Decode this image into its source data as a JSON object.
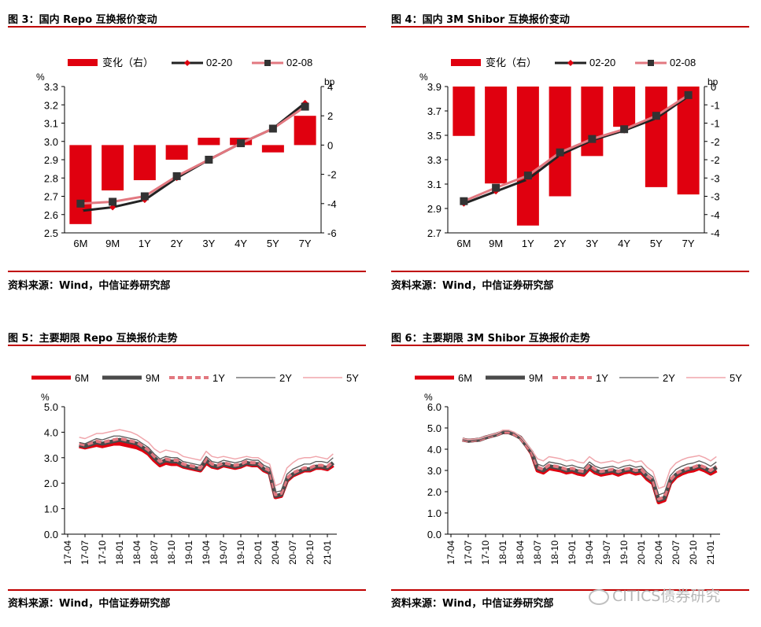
{
  "panels": [
    {
      "title": "图 3：国内 Repo 互换报价变动",
      "source": "资料来源：Wind，中信证券研究部"
    },
    {
      "title": "图 4：国内 3M Shibor 互换报价变动",
      "source": "资料来源：Wind，中信证券研究部"
    },
    {
      "title": "图 5：主要期限 Repo 互换报价走势",
      "source": "资料来源：Wind，中信证券研究部"
    },
    {
      "title": "图 6：主要期限 3M Shibor 互换报价走势",
      "source": "资料来源：Wind，中信证券研究部"
    }
  ],
  "watermark": "CITICS债券研究",
  "colors": {
    "accent": "#c00000",
    "bar": "#e0000f",
    "dark": "#222222",
    "pink": "#e27880",
    "grey": "#5a5a5a",
    "light_pink": "#f0a6ac"
  },
  "chart_data": [
    {
      "type": "bar",
      "categories": [
        "6M",
        "9M",
        "1Y",
        "2Y",
        "3Y",
        "4Y",
        "5Y",
        "7Y"
      ],
      "left_unit": "%",
      "right_unit": "bp",
      "ylim": [
        2.5,
        3.3
      ],
      "yticks": [
        "2.5",
        "2.6",
        "2.7",
        "2.8",
        "2.9",
        "3.0",
        "3.1",
        "3.2",
        "3.3"
      ],
      "y2lim": [
        -6,
        4
      ],
      "y2ticks": [
        "-6",
        "-4",
        "-2",
        "0",
        "2",
        "4"
      ],
      "series": [
        {
          "name": "变化（右）",
          "kind": "bar",
          "axis": "right",
          "values": [
            -5.4,
            -3.1,
            -2.4,
            -1.0,
            0.5,
            0.5,
            -0.5,
            2.0
          ]
        },
        {
          "name": "02-20",
          "kind": "line",
          "marker": "diamond",
          "values": [
            2.62,
            2.64,
            2.68,
            2.8,
            2.9,
            2.99,
            3.07,
            3.21
          ]
        },
        {
          "name": "02-08",
          "kind": "line",
          "marker": "square",
          "values": [
            2.66,
            2.67,
            2.7,
            2.81,
            2.9,
            2.99,
            3.07,
            3.19
          ]
        }
      ],
      "legend": "top"
    },
    {
      "type": "bar",
      "categories": [
        "6M",
        "9M",
        "1Y",
        "2Y",
        "3Y",
        "4Y",
        "5Y",
        "7Y"
      ],
      "left_unit": "%",
      "right_unit": "bp",
      "ylim": [
        2.7,
        3.9
      ],
      "yticks": [
        "2.7",
        "2.9",
        "3.1",
        "3.3",
        "3.5",
        "3.7",
        "3.9"
      ],
      "y2lim": [
        -4,
        0
      ],
      "y2ticks": [
        "-4",
        "-4",
        "-3",
        "-3",
        "-2",
        "-2",
        "-1",
        "-1",
        "0"
      ],
      "series": [
        {
          "name": "变化（右）",
          "kind": "bar",
          "axis": "right",
          "values": [
            -1.35,
            -2.65,
            -3.8,
            -3.0,
            -1.9,
            -1.1,
            -2.75,
            -2.95
          ]
        },
        {
          "name": "02-20",
          "kind": "line",
          "marker": "diamond",
          "values": [
            2.94,
            3.04,
            3.14,
            3.34,
            3.46,
            3.54,
            3.64,
            3.82
          ]
        },
        {
          "name": "02-08",
          "kind": "line",
          "marker": "square",
          "values": [
            2.96,
            3.07,
            3.17,
            3.36,
            3.47,
            3.55,
            3.66,
            3.83
          ]
        }
      ],
      "legend": "top"
    },
    {
      "type": "line",
      "unit": "%",
      "ylim": [
        0.0,
        5.0
      ],
      "yticks": [
        "0.0",
        "1.0",
        "2.0",
        "3.0",
        "4.0",
        "5.0"
      ],
      "xticks": [
        "17-04",
        "17-07",
        "17-10",
        "18-01",
        "18-04",
        "18-07",
        "18-10",
        "19-01",
        "19-04",
        "19-07",
        "19-10",
        "20-01",
        "20-04",
        "20-07",
        "20-10",
        "21-01"
      ],
      "x": [
        "17-06",
        "17-07",
        "17-09",
        "17-10",
        "17-12",
        "18-01",
        "18-02",
        "18-03",
        "18-04",
        "18-05",
        "18-06",
        "18-07",
        "18-08",
        "18-09",
        "18-10",
        "18-11",
        "18-12",
        "19-01",
        "19-02",
        "19-03",
        "19-04",
        "19-05",
        "19-06",
        "19-07",
        "19-08",
        "19-09",
        "19-10",
        "19-11",
        "19-12",
        "20-01",
        "20-02",
        "20-03",
        "20-04",
        "20-05",
        "20-06",
        "20-07",
        "20-08",
        "20-09",
        "20-10",
        "20-11",
        "20-12",
        "21-01",
        "21-02"
      ],
      "series": [
        {
          "name": "6M",
          "style": "thick-red",
          "values": [
            3.45,
            3.4,
            3.5,
            3.45,
            3.55,
            3.55,
            3.5,
            3.45,
            3.4,
            3.3,
            3.15,
            2.9,
            2.7,
            2.8,
            2.75,
            2.75,
            2.65,
            2.6,
            2.55,
            2.5,
            2.8,
            2.65,
            2.6,
            2.7,
            2.65,
            2.6,
            2.65,
            2.75,
            2.7,
            2.7,
            2.5,
            2.4,
            1.45,
            1.5,
            2.1,
            2.3,
            2.4,
            2.5,
            2.5,
            2.6,
            2.6,
            2.55,
            2.7
          ]
        },
        {
          "name": "9M",
          "style": "thick-dark",
          "values": [
            3.5,
            3.45,
            3.6,
            3.55,
            3.65,
            3.7,
            3.65,
            3.6,
            3.55,
            3.4,
            3.25,
            3.0,
            2.8,
            2.9,
            2.85,
            2.85,
            2.7,
            2.65,
            2.6,
            2.55,
            2.9,
            2.7,
            2.65,
            2.75,
            2.7,
            2.65,
            2.7,
            2.8,
            2.75,
            2.75,
            2.55,
            2.45,
            1.5,
            1.55,
            2.15,
            2.35,
            2.45,
            2.55,
            2.55,
            2.65,
            2.65,
            2.6,
            2.8
          ]
        },
        {
          "name": "1Y",
          "style": "dashed-pink",
          "values": [
            3.55,
            3.5,
            3.65,
            3.6,
            3.7,
            3.75,
            3.7,
            3.65,
            3.6,
            3.45,
            3.3,
            3.05,
            2.85,
            2.95,
            2.9,
            2.9,
            2.75,
            2.7,
            2.65,
            2.6,
            2.95,
            2.75,
            2.7,
            2.8,
            2.75,
            2.7,
            2.75,
            2.85,
            2.8,
            2.8,
            2.6,
            2.5,
            1.55,
            1.6,
            2.2,
            2.4,
            2.5,
            2.6,
            2.6,
            2.7,
            2.7,
            2.65,
            2.85
          ]
        },
        {
          "name": "2Y",
          "style": "thin-grey",
          "values": [
            3.6,
            3.55,
            3.75,
            3.7,
            3.85,
            3.85,
            3.8,
            3.75,
            3.7,
            3.55,
            3.4,
            3.15,
            2.95,
            3.05,
            3.0,
            3.0,
            2.85,
            2.8,
            2.75,
            2.7,
            3.05,
            2.85,
            2.8,
            2.9,
            2.85,
            2.8,
            2.85,
            2.95,
            2.9,
            2.9,
            2.7,
            2.6,
            1.65,
            1.7,
            2.35,
            2.55,
            2.65,
            2.75,
            2.75,
            2.85,
            2.85,
            2.8,
            3.0
          ]
        },
        {
          "name": "5Y",
          "style": "thin-lightpink",
          "values": [
            3.8,
            3.75,
            3.95,
            3.95,
            4.05,
            4.1,
            4.05,
            4.0,
            3.9,
            3.75,
            3.6,
            3.35,
            3.2,
            3.3,
            3.25,
            3.2,
            3.05,
            3.0,
            2.95,
            2.9,
            3.25,
            3.05,
            3.0,
            3.05,
            3.0,
            2.95,
            3.0,
            3.05,
            3.0,
            3.0,
            2.85,
            2.75,
            1.9,
            2.0,
            2.6,
            2.8,
            2.95,
            3.0,
            3.0,
            3.05,
            3.0,
            2.95,
            3.15
          ]
        }
      ],
      "legend": "top"
    },
    {
      "type": "line",
      "unit": "%",
      "ylim": [
        0.0,
        6.0
      ],
      "yticks": [
        "0.0",
        "1.0",
        "2.0",
        "3.0",
        "4.0",
        "5.0",
        "6.0"
      ],
      "xticks": [
        "17-04",
        "17-07",
        "17-10",
        "18-01",
        "18-04",
        "18-07",
        "18-10",
        "19-01",
        "19-04",
        "19-07",
        "19-10",
        "20-01",
        "20-04",
        "20-07",
        "20-10",
        "21-01"
      ],
      "x": [
        "17-06",
        "17-07",
        "17-09",
        "17-10",
        "17-12",
        "18-01",
        "18-02",
        "18-03",
        "18-04",
        "18-05",
        "18-06",
        "18-07",
        "18-08",
        "18-09",
        "18-10",
        "18-11",
        "18-12",
        "19-01",
        "19-02",
        "19-03",
        "19-04",
        "19-05",
        "19-06",
        "19-07",
        "19-08",
        "19-09",
        "19-10",
        "19-11",
        "19-12",
        "20-01",
        "20-02",
        "20-03",
        "20-04",
        "20-05",
        "20-06",
        "20-07",
        "20-08",
        "20-09",
        "20-10",
        "20-11",
        "20-12",
        "21-01",
        "21-02"
      ],
      "series": [
        {
          "name": "6M",
          "style": "thick-red",
          "values": [
            4.45,
            4.4,
            4.45,
            4.55,
            4.7,
            4.8,
            4.8,
            4.7,
            4.55,
            4.2,
            3.8,
            3.0,
            2.9,
            3.1,
            3.05,
            3.0,
            2.9,
            2.95,
            2.85,
            2.8,
            3.1,
            2.9,
            2.8,
            2.85,
            2.9,
            2.8,
            2.9,
            2.95,
            2.85,
            2.9,
            2.6,
            2.4,
            1.5,
            1.6,
            2.4,
            2.7,
            2.85,
            2.95,
            3.0,
            3.1,
            3.0,
            2.85,
            3.0
          ]
        },
        {
          "name": "9M",
          "style": "thick-dark",
          "values": [
            4.45,
            4.4,
            4.45,
            4.55,
            4.7,
            4.8,
            4.8,
            4.7,
            4.55,
            4.2,
            3.85,
            3.1,
            3.0,
            3.2,
            3.15,
            3.1,
            3.0,
            3.05,
            2.95,
            2.9,
            3.2,
            3.0,
            2.9,
            2.95,
            3.0,
            2.9,
            3.0,
            3.05,
            2.95,
            3.0,
            2.7,
            2.5,
            1.6,
            1.7,
            2.5,
            2.8,
            2.95,
            3.05,
            3.1,
            3.2,
            3.1,
            2.95,
            3.15
          ]
        },
        {
          "name": "1Y",
          "style": "dashed-pink",
          "values": [
            4.45,
            4.4,
            4.45,
            4.55,
            4.7,
            4.8,
            4.8,
            4.7,
            4.55,
            4.2,
            3.85,
            3.15,
            3.05,
            3.25,
            3.2,
            3.15,
            3.05,
            3.1,
            3.0,
            2.95,
            3.25,
            3.05,
            2.95,
            3.0,
            3.05,
            2.95,
            3.05,
            3.1,
            3.0,
            3.05,
            2.75,
            2.55,
            1.65,
            1.75,
            2.55,
            2.85,
            3.0,
            3.1,
            3.15,
            3.25,
            3.15,
            3.0,
            3.2
          ]
        },
        {
          "name": "2Y",
          "style": "thin-grey",
          "values": [
            4.45,
            4.4,
            4.45,
            4.55,
            4.7,
            4.85,
            4.85,
            4.75,
            4.55,
            4.25,
            3.9,
            3.3,
            3.2,
            3.4,
            3.35,
            3.3,
            3.2,
            3.25,
            3.15,
            3.1,
            3.4,
            3.2,
            3.1,
            3.15,
            3.2,
            3.1,
            3.2,
            3.25,
            3.15,
            3.2,
            2.9,
            2.7,
            1.85,
            1.95,
            2.75,
            3.05,
            3.2,
            3.3,
            3.35,
            3.45,
            3.35,
            3.2,
            3.4
          ]
        },
        {
          "name": "5Y",
          "style": "thin-lightpink",
          "values": [
            4.5,
            4.45,
            4.5,
            4.6,
            4.75,
            4.9,
            4.9,
            4.8,
            4.6,
            4.3,
            3.95,
            3.55,
            3.45,
            3.65,
            3.6,
            3.55,
            3.45,
            3.5,
            3.4,
            3.35,
            3.65,
            3.45,
            3.35,
            3.4,
            3.45,
            3.35,
            3.45,
            3.5,
            3.4,
            3.45,
            3.15,
            2.95,
            2.15,
            2.25,
            3.05,
            3.35,
            3.5,
            3.6,
            3.65,
            3.7,
            3.6,
            3.45,
            3.65
          ]
        }
      ],
      "legend": "top"
    }
  ]
}
